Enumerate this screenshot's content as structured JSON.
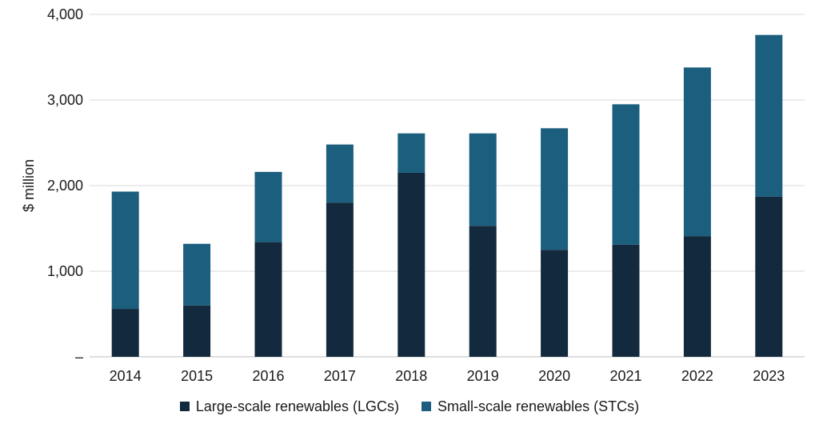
{
  "chart_data": {
    "type": "bar",
    "stacked": true,
    "title": "",
    "xlabel": "",
    "ylabel": "$ million",
    "categories": [
      "2014",
      "2015",
      "2016",
      "2017",
      "2018",
      "2019",
      "2020",
      "2021",
      "2022",
      "2023"
    ],
    "series": [
      {
        "name": "Large-scale renewables (LGCs)",
        "color": "#13293d",
        "values": [
          560,
          600,
          1340,
          1800,
          2150,
          1530,
          1250,
          1310,
          1410,
          1870
        ]
      },
      {
        "name": "Small-scale renewables (STCs)",
        "color": "#1b5e7e",
        "values": [
          1370,
          720,
          820,
          680,
          460,
          1080,
          1420,
          1640,
          1970,
          1890
        ]
      }
    ],
    "ylim": [
      0,
      4000
    ],
    "yticks": [
      0,
      1000,
      2000,
      3000,
      4000
    ],
    "ytick_labels": [
      "–",
      "1,000",
      "2,000",
      "3,000",
      "4,000"
    ],
    "grid": true,
    "legend_position": "bottom"
  }
}
